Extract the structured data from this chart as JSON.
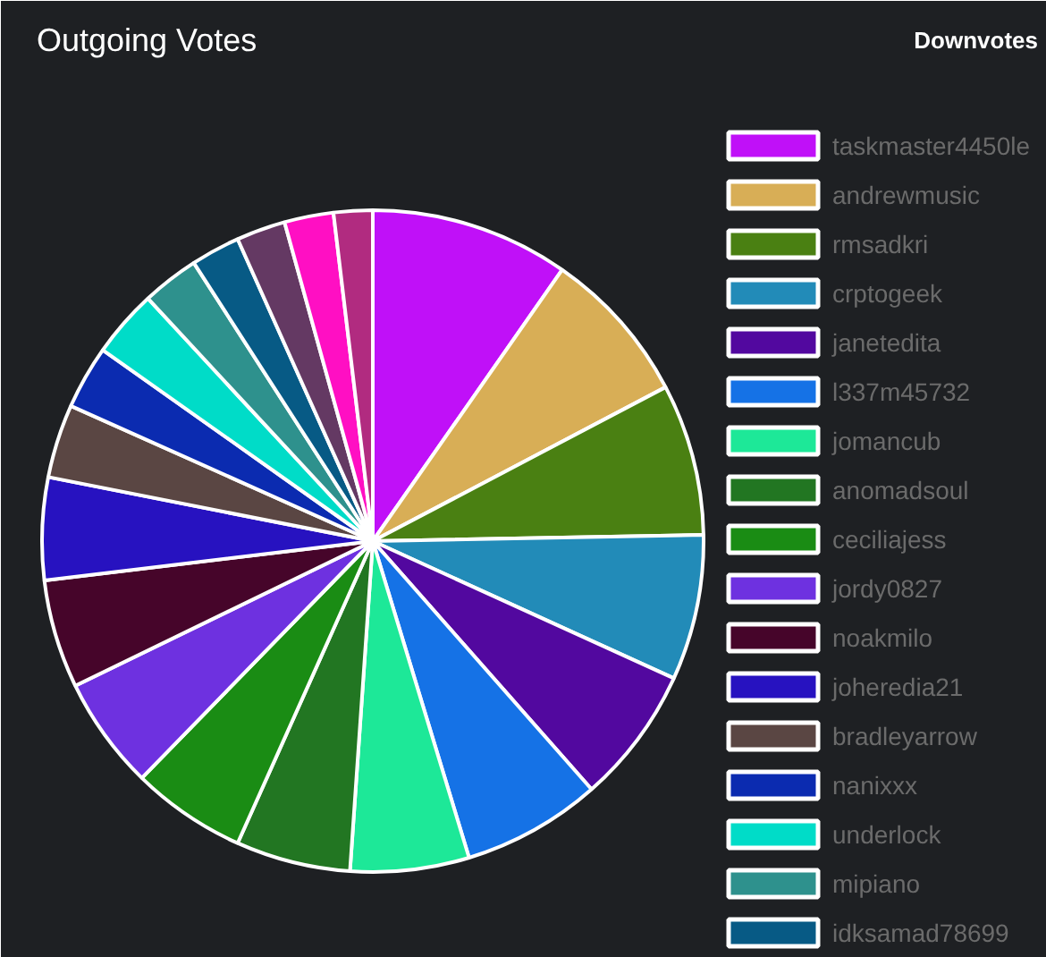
{
  "chart_data": {
    "type": "pie",
    "title": "Outgoing Votes",
    "annotations": [
      "Downvotes"
    ],
    "categories": [
      "taskmaster4450le",
      "andrewmusic",
      "rmsadkri",
      "crptogeek",
      "janetedita",
      "l337m45732",
      "jomancub",
      "anomadsoul",
      "ceciliajess",
      "jordy0827",
      "noakmilo",
      "joheredia21",
      "bradleyarrow",
      "nanixxx",
      "underlock",
      "mipiano",
      "idksamad78699",
      null,
      null,
      null
    ],
    "values": [
      9.7,
      7.6,
      7.4,
      7.1,
      6.7,
      6.8,
      5.8,
      5.6,
      5.6,
      5.5,
      5.3,
      5.0,
      3.6,
      3.1,
      3.3,
      2.8,
      2.4,
      2.4,
      2.4,
      1.9
    ],
    "colors": [
      "#c010f8",
      "#d8ae56",
      "#4a8012",
      "#228bb8",
      "#52089f",
      "#1572e6",
      "#1de898",
      "#227622",
      "#1a8c14",
      "#6e31e0",
      "#46052a",
      "#2712c0",
      "#5a4643",
      "#0b2bb0",
      "#00dcc8",
      "#2e918d",
      "#075a85",
      "#643963",
      "#ff0fc3",
      "#b12b80"
    ],
    "legend": "right"
  }
}
